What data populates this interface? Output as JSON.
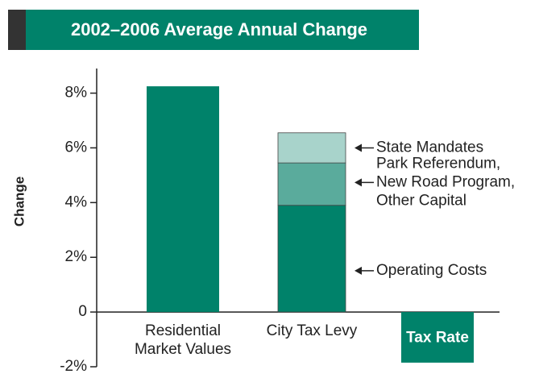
{
  "chart_data": {
    "type": "bar",
    "title": "2002–2006 Average Annual Change",
    "ylabel": "Change",
    "categories": [
      "Residential\nMarket Values",
      "City Tax Levy",
      "Tax Rate"
    ],
    "values": [
      8.25,
      null,
      -1.85
    ],
    "color": "#00826a",
    "stack": {
      "category_index": 1,
      "segments": [
        {
          "name": "Operating Costs",
          "value": 3.9,
          "color": "#00826a"
        },
        {
          "name": "Park Referendum,\nNew Road Program,\nOther Capital",
          "value": 1.55,
          "color": "#5aab9c"
        },
        {
          "name": "State Mandates",
          "value": 1.1,
          "color": "#a8d3cb"
        }
      ]
    },
    "ylim": [
      -2,
      8.9
    ],
    "yticks": [
      {
        "value": -2,
        "label": "-2%"
      },
      0,
      {
        "value": 2,
        "label": "2%"
      },
      {
        "value": 4,
        "label": "4%"
      },
      {
        "value": 6,
        "label": "6%"
      },
      {
        "value": 8,
        "label": "8%"
      }
    ]
  }
}
